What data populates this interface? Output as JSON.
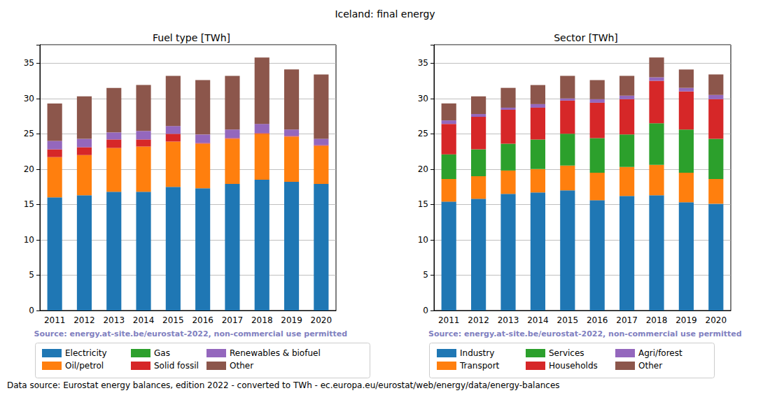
{
  "title": "Iceland: final energy",
  "footer": "Data source: Eurostat energy balances, edition 2022 - converted to TWh - ec.europa.eu/eurostat/web/energy/data/energy-balances",
  "chart_data": [
    {
      "type": "bar",
      "title": "Fuel type [TWh]",
      "stacked": true,
      "grid": true,
      "legend": "bottom",
      "source": "Source: energy.at-site.be/eurostat-2022, non-commercial use permitted",
      "categories": [
        "2011",
        "2012",
        "2013",
        "2014",
        "2015",
        "2016",
        "2017",
        "2018",
        "2019",
        "2020"
      ],
      "ylim": [
        0,
        37.6
      ],
      "yticks": [
        0,
        5,
        10,
        15,
        20,
        25,
        30,
        35
      ],
      "series": [
        {
          "name": "Electricity",
          "color": "#1f77b4",
          "values": [
            16.0,
            16.3,
            16.8,
            16.8,
            17.5,
            17.3,
            17.9,
            18.5,
            18.2,
            17.9
          ]
        },
        {
          "name": "Oil/petrol",
          "color": "#ff7f0e",
          "values": [
            5.7,
            5.7,
            6.2,
            6.4,
            6.4,
            6.3,
            6.4,
            6.5,
            6.4,
            5.4
          ]
        },
        {
          "name": "Gas",
          "color": "#2ca02c",
          "values": [
            0,
            0,
            0,
            0,
            0,
            0,
            0,
            0,
            0,
            0
          ]
        },
        {
          "name": "Solid fossil",
          "color": "#d62728",
          "values": [
            1.1,
            1.1,
            1.2,
            1.0,
            1.1,
            0.1,
            0.1,
            0.1,
            0.1,
            0.1
          ]
        },
        {
          "name": "Renewables & biofuel",
          "color": "#9467bd",
          "values": [
            1.2,
            1.2,
            1.0,
            1.2,
            1.1,
            1.2,
            1.2,
            1.3,
            0.9,
            0.9
          ]
        },
        {
          "name": "Other",
          "color": "#8c564b",
          "values": [
            5.3,
            6.0,
            6.3,
            6.5,
            7.1,
            7.7,
            7.6,
            9.4,
            8.5,
            9.1
          ]
        }
      ]
    },
    {
      "type": "bar",
      "title": "Sector [TWh]",
      "stacked": true,
      "grid": true,
      "legend": "bottom",
      "source": "Source: energy.at-site.be/eurostat-2022, non-commercial use permitted",
      "categories": [
        "2011",
        "2012",
        "2013",
        "2014",
        "2015",
        "2016",
        "2017",
        "2018",
        "2019",
        "2020"
      ],
      "ylim": [
        0,
        37.6
      ],
      "yticks": [
        0,
        5,
        10,
        15,
        20,
        25,
        30,
        35
      ],
      "series": [
        {
          "name": "Industry",
          "color": "#1f77b4",
          "values": [
            15.4,
            15.8,
            16.5,
            16.7,
            17.0,
            15.6,
            16.2,
            16.3,
            15.3,
            15.1
          ]
        },
        {
          "name": "Transport",
          "color": "#ff7f0e",
          "values": [
            3.2,
            3.2,
            3.3,
            3.3,
            3.5,
            3.9,
            4.1,
            4.3,
            4.2,
            3.5
          ]
        },
        {
          "name": "Services",
          "color": "#2ca02c",
          "values": [
            3.5,
            3.8,
            3.8,
            4.2,
            4.5,
            4.9,
            4.6,
            5.9,
            6.1,
            5.7
          ]
        },
        {
          "name": "Households",
          "color": "#d62728",
          "values": [
            4.3,
            4.6,
            4.8,
            4.5,
            4.7,
            5.0,
            5.0,
            6.0,
            5.4,
            5.6
          ]
        },
        {
          "name": "Agri/forest",
          "color": "#9467bd",
          "values": [
            0.5,
            0.4,
            0.3,
            0.5,
            0.3,
            0.5,
            0.5,
            0.5,
            0.5,
            0.6
          ]
        },
        {
          "name": "Other",
          "color": "#8c564b",
          "values": [
            2.4,
            2.5,
            2.8,
            2.7,
            3.2,
            2.7,
            2.8,
            2.8,
            2.6,
            2.9
          ]
        }
      ]
    }
  ]
}
